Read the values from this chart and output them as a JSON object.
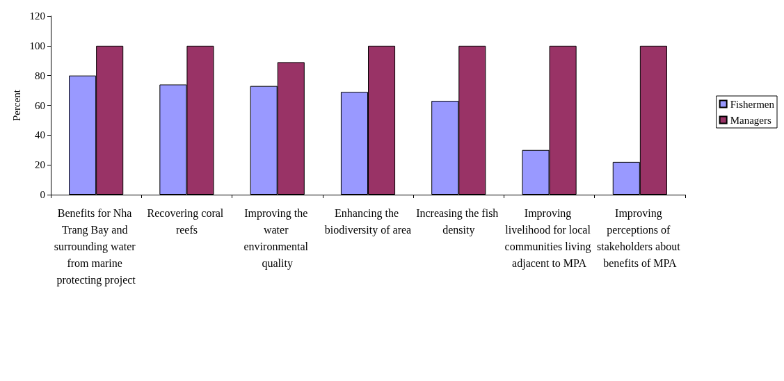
{
  "chart_data": {
    "type": "bar",
    "ylabel": "Percent",
    "categories": [
      "Benefits for Nha Trang Bay and surrounding water from marine protecting project",
      "Recovering coral reefs",
      "Improving the water environmental quality",
      "Enhancing the biodiversity of area",
      "Increasing the fish density",
      "Improving livelihood for local communities living adjacent to MPA",
      "Improving perceptions of stakeholders about benefits of MPA"
    ],
    "series": [
      {
        "name": "Fishermen",
        "color": "#9999ff",
        "values": [
          80,
          74,
          73,
          69,
          63,
          30,
          22
        ]
      },
      {
        "name": "Managers",
        "color": "#993366",
        "values": [
          100,
          100,
          89,
          100,
          100,
          100,
          100
        ]
      }
    ],
    "ylim": [
      0,
      120
    ],
    "yticks": [
      0,
      20,
      40,
      60,
      80,
      100,
      120
    ],
    "grid": false,
    "legend": "right"
  }
}
